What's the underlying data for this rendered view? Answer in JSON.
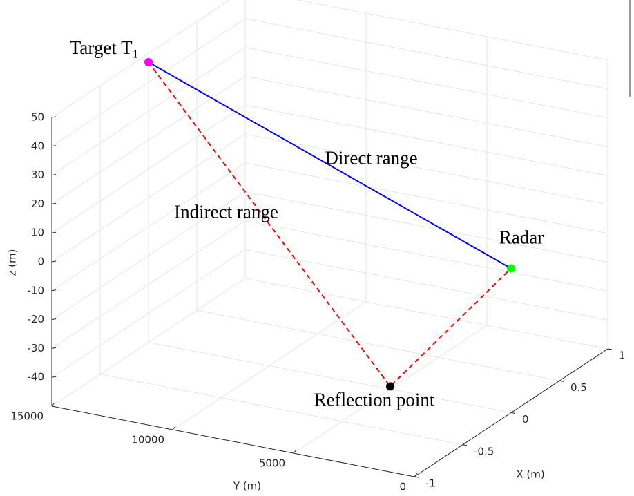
{
  "chart_data": {
    "type": "line3d",
    "xlabel": "X (m)",
    "ylabel": "Y (m)",
    "zlabel": "z (m)",
    "xlim": [
      -1,
      1
    ],
    "ylim": [
      0,
      15000
    ],
    "zlim": [
      -50,
      50
    ],
    "xticks": [
      -1,
      -0.5,
      0,
      0.5,
      1
    ],
    "yticks": [
      0,
      5000,
      10000,
      15000
    ],
    "zticks": [
      -40,
      -30,
      -20,
      -10,
      0,
      10,
      20,
      30,
      40,
      50
    ],
    "grid": true,
    "series": [
      {
        "name": "Direct range",
        "color": "#0000ff",
        "style": "solid",
        "x": [
          0,
          0
        ],
        "y": [
          15000,
          0
        ],
        "z": [
          47,
          0
        ]
      },
      {
        "name": "Indirect range",
        "color": "#ff0000",
        "style": "dashed",
        "x": [
          0,
          0,
          0
        ],
        "y": [
          15000,
          5000,
          0
        ],
        "z": [
          47,
          -49,
          0
        ]
      }
    ],
    "markers": [
      {
        "label": "Target T₁",
        "color": "#ff00ff",
        "x": 0,
        "y": 15000,
        "z": 47
      },
      {
        "label": "Radar",
        "color": "#00ff00",
        "x": 0,
        "y": 0,
        "z": 0
      },
      {
        "label": "Reflection point",
        "color": "#000000",
        "x": 0,
        "y": 5000,
        "z": -49
      }
    ]
  }
}
